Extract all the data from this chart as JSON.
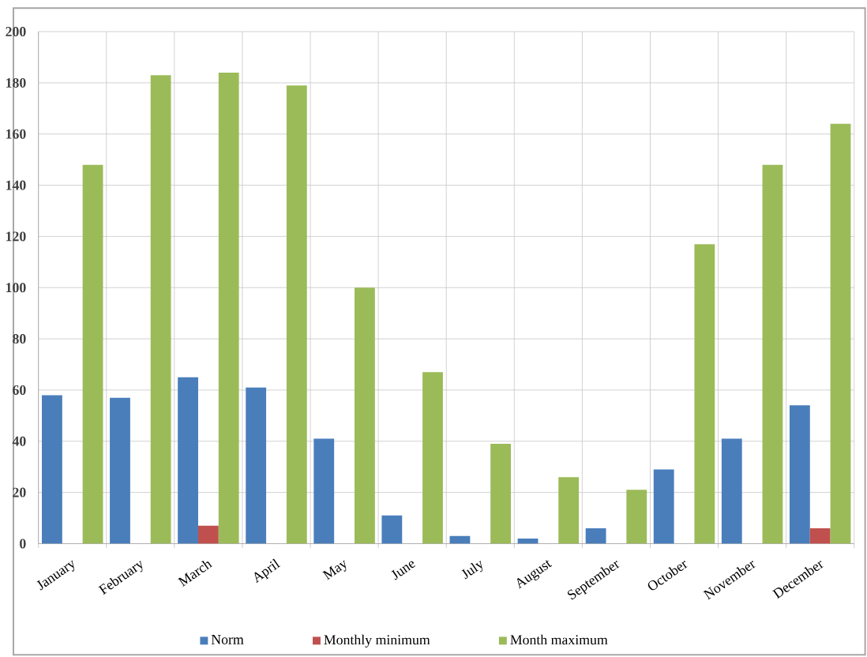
{
  "chart_data": {
    "type": "bar",
    "categories": [
      "January",
      "February",
      "March",
      "April",
      "May",
      "June",
      "July",
      "August",
      "September",
      "October",
      "November",
      "December"
    ],
    "series": [
      {
        "name": "Norm",
        "color": "#4a7ebb",
        "values": [
          58,
          57,
          65,
          61,
          41,
          11,
          3,
          2,
          6,
          29,
          41,
          54
        ]
      },
      {
        "name": "Monthly minimum",
        "color": "#c0504d",
        "values": [
          null,
          null,
          7,
          null,
          null,
          null,
          null,
          null,
          null,
          null,
          null,
          6
        ]
      },
      {
        "name": "Month maximum",
        "color": "#9bbb59",
        "values": [
          148,
          183,
          184,
          179,
          100,
          67,
          39,
          26,
          21,
          117,
          148,
          164
        ]
      }
    ],
    "ylim": [
      0,
      200
    ],
    "yticks": [
      0,
      20,
      40,
      60,
      80,
      100,
      120,
      140,
      160,
      180,
      200
    ],
    "grid": true,
    "legend": "bottom"
  }
}
